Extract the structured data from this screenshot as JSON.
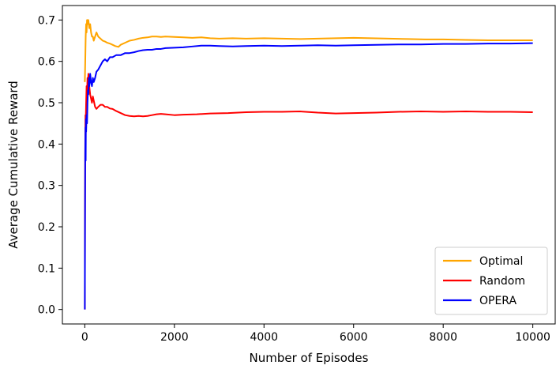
{
  "chart_data": {
    "type": "line",
    "title": "",
    "xlabel": "Number of Episodes",
    "ylabel": "Average Cumulative Reward",
    "xlim": [
      -500,
      10500
    ],
    "ylim": [
      -0.035,
      0.735
    ],
    "xticks": [
      0,
      2000,
      4000,
      6000,
      8000,
      10000
    ],
    "xtick_labels": [
      "0",
      "2000",
      "4000",
      "6000",
      "8000",
      "10000"
    ],
    "yticks": [
      0.0,
      0.1,
      0.2,
      0.3,
      0.4,
      0.5,
      0.6,
      0.7
    ],
    "ytick_labels": [
      "0.0",
      "0.1",
      "0.2",
      "0.3",
      "0.4",
      "0.5",
      "0.6",
      "0.7"
    ],
    "grid": false,
    "legend_position": "lower-right",
    "series": [
      {
        "name": "Optimal",
        "color": "#ffa500",
        "x": [
          1,
          10,
          20,
          30,
          40,
          50,
          60,
          70,
          80,
          90,
          100,
          120,
          140,
          160,
          180,
          200,
          230,
          260,
          300,
          350,
          400,
          450,
          500,
          560,
          620,
          680,
          750,
          800,
          900,
          1000,
          1100,
          1200,
          1300,
          1400,
          1500,
          1600,
          1700,
          1800,
          2000,
          2200,
          2400,
          2600,
          2800,
          3000,
          3300,
          3600,
          4000,
          4400,
          4800,
          5200,
          5600,
          6000,
          6400,
          6800,
          7200,
          7600,
          8000,
          8500,
          9000,
          9500,
          10000
        ],
        "y": [
          0.55,
          0.6,
          0.66,
          0.69,
          0.67,
          0.7,
          0.7,
          0.69,
          0.7,
          0.69,
          0.68,
          0.69,
          0.67,
          0.66,
          0.66,
          0.65,
          0.66,
          0.67,
          0.66,
          0.655,
          0.65,
          0.648,
          0.645,
          0.643,
          0.64,
          0.637,
          0.635,
          0.64,
          0.645,
          0.65,
          0.652,
          0.655,
          0.657,
          0.658,
          0.66,
          0.66,
          0.659,
          0.66,
          0.659,
          0.658,
          0.657,
          0.658,
          0.656,
          0.655,
          0.656,
          0.655,
          0.656,
          0.655,
          0.654,
          0.655,
          0.656,
          0.657,
          0.656,
          0.655,
          0.654,
          0.653,
          0.653,
          0.652,
          0.651,
          0.651,
          0.651
        ]
      },
      {
        "name": "Random",
        "color": "#ff0000",
        "x": [
          1,
          5,
          10,
          15,
          20,
          30,
          40,
          50,
          60,
          70,
          80,
          90,
          100,
          110,
          120,
          140,
          160,
          180,
          200,
          230,
          260,
          300,
          350,
          400,
          450,
          500,
          560,
          620,
          700,
          800,
          900,
          1000,
          1100,
          1200,
          1300,
          1400,
          1500,
          1600,
          1700,
          1800,
          2000,
          2200,
          2500,
          2800,
          3200,
          3600,
          4000,
          4400,
          4800,
          5200,
          5600,
          6000,
          6500,
          7000,
          7500,
          8000,
          8500,
          9000,
          9500,
          10000
        ],
        "y": [
          0.0,
          0.25,
          0.4,
          0.47,
          0.45,
          0.5,
          0.54,
          0.52,
          0.56,
          0.53,
          0.57,
          0.55,
          0.54,
          0.53,
          0.52,
          0.51,
          0.5,
          0.515,
          0.505,
          0.49,
          0.485,
          0.49,
          0.495,
          0.495,
          0.49,
          0.49,
          0.486,
          0.485,
          0.48,
          0.475,
          0.47,
          0.468,
          0.467,
          0.468,
          0.467,
          0.468,
          0.47,
          0.472,
          0.473,
          0.472,
          0.47,
          0.471,
          0.472,
          0.474,
          0.475,
          0.477,
          0.478,
          0.478,
          0.479,
          0.476,
          0.474,
          0.475,
          0.476,
          0.478,
          0.479,
          0.478,
          0.479,
          0.478,
          0.478,
          0.477
        ]
      },
      {
        "name": "OPERA",
        "color": "#0000ff",
        "x": [
          1,
          5,
          10,
          15,
          20,
          25,
          30,
          40,
          50,
          60,
          70,
          80,
          90,
          100,
          110,
          120,
          140,
          160,
          180,
          200,
          230,
          260,
          300,
          350,
          400,
          450,
          500,
          560,
          620,
          700,
          800,
          900,
          1000,
          1100,
          1200,
          1300,
          1400,
          1500,
          1600,
          1700,
          1800,
          2000,
          2200,
          2400,
          2600,
          2800,
          3000,
          3300,
          3600,
          4000,
          4400,
          4800,
          5200,
          5600,
          6000,
          6500,
          7000,
          7500,
          8000,
          8500,
          9000,
          9500,
          10000
        ],
        "y": [
          0.0,
          0.2,
          0.38,
          0.44,
          0.36,
          0.46,
          0.43,
          0.47,
          0.45,
          0.5,
          0.53,
          0.52,
          0.56,
          0.54,
          0.55,
          0.57,
          0.55,
          0.54,
          0.56,
          0.55,
          0.56,
          0.575,
          0.58,
          0.59,
          0.6,
          0.605,
          0.6,
          0.61,
          0.61,
          0.615,
          0.615,
          0.62,
          0.62,
          0.622,
          0.625,
          0.627,
          0.628,
          0.628,
          0.63,
          0.63,
          0.632,
          0.633,
          0.634,
          0.636,
          0.638,
          0.638,
          0.637,
          0.636,
          0.637,
          0.638,
          0.637,
          0.638,
          0.639,
          0.638,
          0.639,
          0.64,
          0.641,
          0.641,
          0.642,
          0.642,
          0.643,
          0.643,
          0.644
        ]
      }
    ]
  }
}
